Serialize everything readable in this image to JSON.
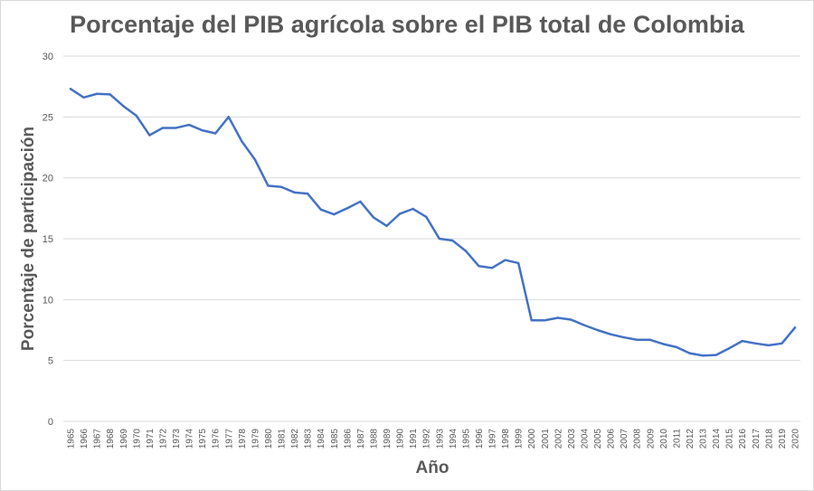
{
  "chart_data": {
    "type": "line",
    "title": "Porcentaje del PIB agrícola sobre el PIB total de Colombia",
    "xlabel": "Año",
    "ylabel": "Porcentaje de participación",
    "ylim": [
      0,
      30
    ],
    "yticks": [
      0,
      5,
      10,
      15,
      20,
      25,
      30
    ],
    "grid": true,
    "line_color": "#4472c4",
    "categories": [
      "1965",
      "1966",
      "1967",
      "1968",
      "1969",
      "1970",
      "1971",
      "1972",
      "1973",
      "1974",
      "1975",
      "1976",
      "1977",
      "1978",
      "1979",
      "1980",
      "1981",
      "1982",
      "1983",
      "1984",
      "1985",
      "1986",
      "1987",
      "1988",
      "1989",
      "1990",
      "1991",
      "1992",
      "1993",
      "1994",
      "1995",
      "1996",
      "1997",
      "1998",
      "1999",
      "2000",
      "2001",
      "2002",
      "2003",
      "2004",
      "2005",
      "2006",
      "2007",
      "2008",
      "2009",
      "2010",
      "2011",
      "2012",
      "2013",
      "2014",
      "2015",
      "2016",
      "2017",
      "2018",
      "2019",
      "2020"
    ],
    "series": [
      {
        "values": [
          27.3,
          26.6,
          26.9,
          26.85,
          25.9,
          25.1,
          23.5,
          24.1,
          24.1,
          24.35,
          23.9,
          23.65,
          25.0,
          23.0,
          21.5,
          19.35,
          19.25,
          18.8,
          18.7,
          17.4,
          17.0,
          17.5,
          18.05,
          16.75,
          16.05,
          17.05,
          17.45,
          16.8,
          15.0,
          14.85,
          14.0,
          12.75,
          12.6,
          13.25,
          13.0,
          8.3,
          8.3,
          8.5,
          8.35,
          7.9,
          7.5,
          7.15,
          6.9,
          6.7,
          6.7,
          6.35,
          6.1,
          5.6,
          5.4,
          5.45,
          6.0,
          6.6,
          6.4,
          6.25,
          6.4,
          7.7
        ]
      }
    ]
  }
}
